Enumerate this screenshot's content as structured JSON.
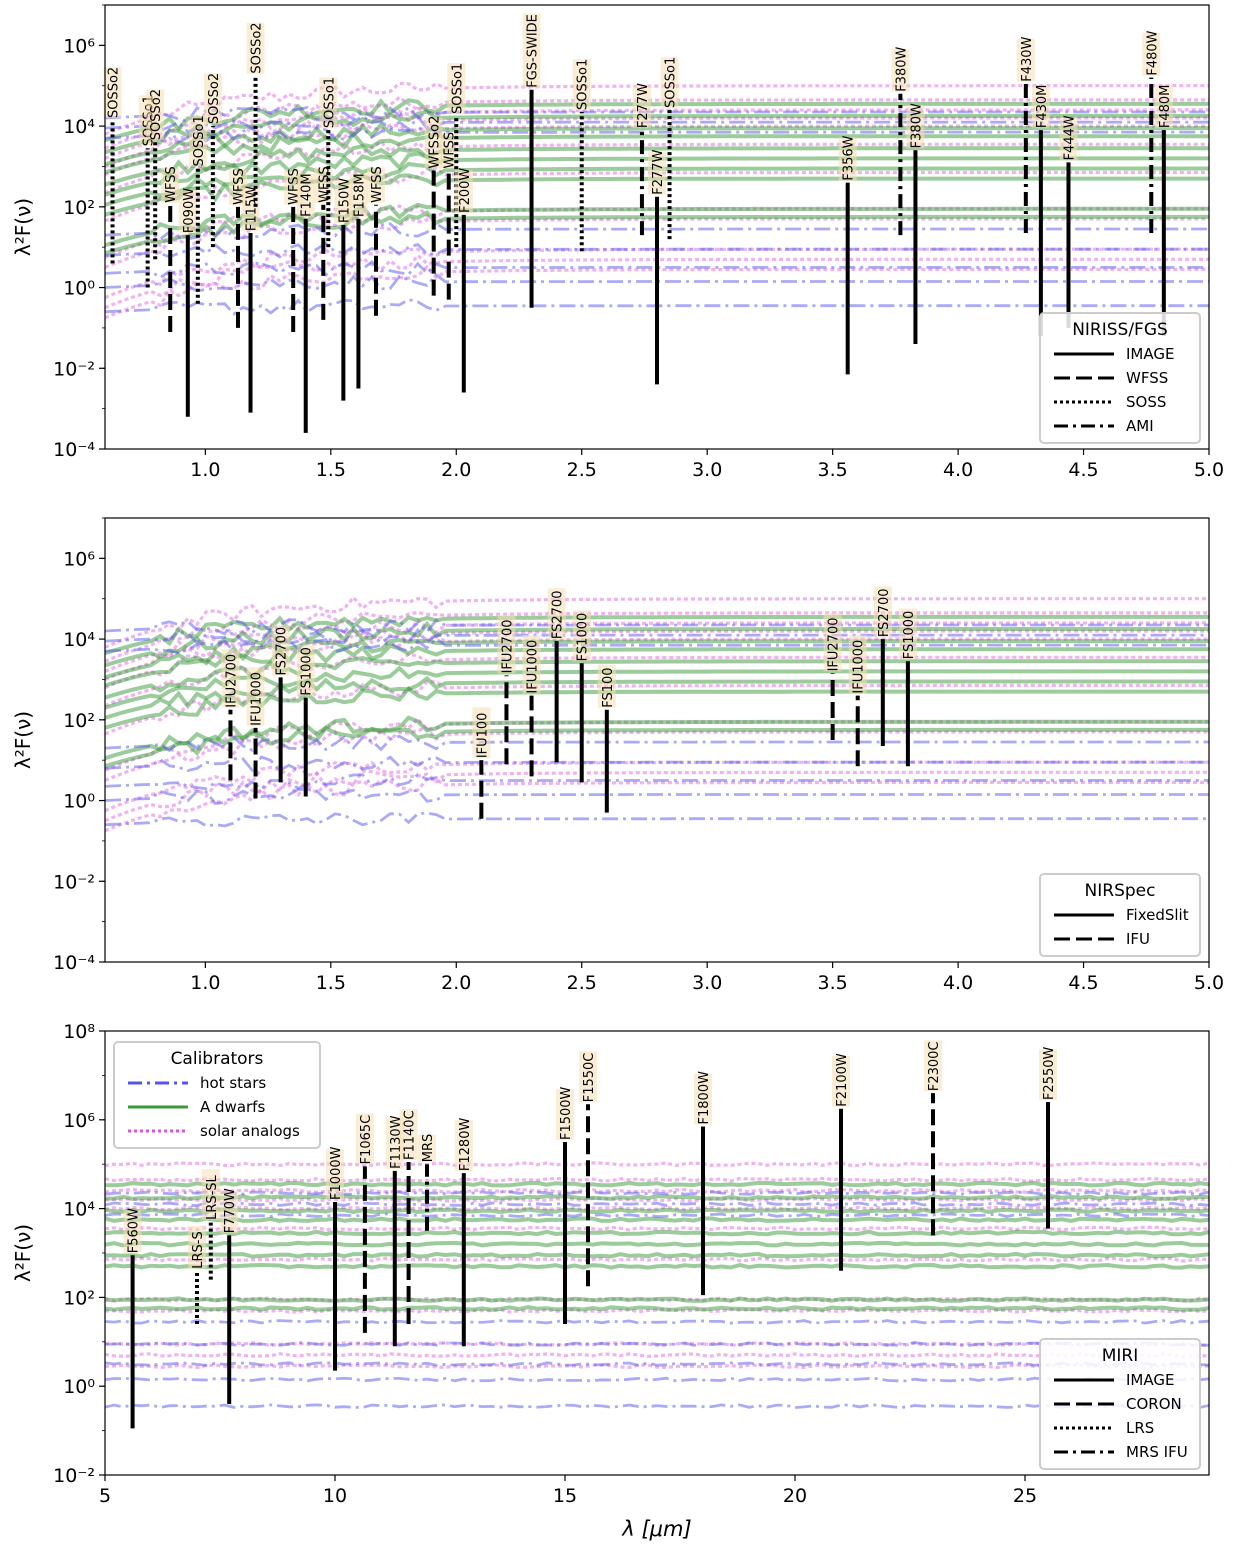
{
  "figure": {
    "xlabel": "λ [μm]"
  },
  "colors": {
    "hot_stars": "#5555ee",
    "a_dwarfs": "#3a9a3a",
    "solar_analogs": "#dd55dd",
    "marker": "#000000",
    "label_box": "#f5deb3"
  },
  "chart_data": [
    {
      "type": "line",
      "panel": "NIRISS/FGS",
      "ylabel": "λ²F(ν)",
      "xlabel": "",
      "xlim": [
        0.6,
        5.0
      ],
      "ylim_log10": [
        -4,
        7
      ],
      "y_scale": "log",
      "xticks": [
        1.0,
        1.5,
        2.0,
        2.5,
        3.0,
        3.5,
        4.0,
        4.5,
        5.0
      ],
      "xtick_labels": [
        "1.0",
        "1.5",
        "2.0",
        "2.5",
        "3.0",
        "3.5",
        "4.0",
        "4.5",
        "5.0"
      ],
      "yticks_log10": [
        -4,
        -2,
        0,
        2,
        4,
        6
      ],
      "ytick_labels": [
        "10⁻⁴",
        "10⁻²",
        "10⁰",
        "10²",
        "10⁴",
        "10⁶"
      ],
      "legend": {
        "title": "NIRISS/FGS",
        "placement": "lower right",
        "entries": [
          {
            "label": "IMAGE",
            "style": "solid"
          },
          {
            "label": "WFSS",
            "style": "dashed"
          },
          {
            "label": "SOSS",
            "style": "dotted"
          },
          {
            "label": "AMI",
            "style": "dashdot"
          }
        ]
      },
      "markers": [
        {
          "x": 0.63,
          "y_low_log10": 0.6,
          "y_high_log10": 4.15,
          "label": "SOSSo2",
          "style": "dotted"
        },
        {
          "x": 0.77,
          "y_low_log10": 0.0,
          "y_high_log10": 3.45,
          "label": "SOSSo1",
          "style": "dotted"
        },
        {
          "x": 0.8,
          "y_low_log10": 0.7,
          "y_high_log10": 3.6,
          "label": "SOSSo2",
          "style": "dotted"
        },
        {
          "x": 0.86,
          "y_low_log10": -1.1,
          "y_high_log10": 2.05,
          "label": "WFSS",
          "style": "dashed"
        },
        {
          "x": 0.93,
          "y_low_log10": -3.2,
          "y_high_log10": 1.3,
          "label": "F090W",
          "style": "solid"
        },
        {
          "x": 0.97,
          "y_low_log10": -0.4,
          "y_high_log10": 2.95,
          "label": "SOSSo1",
          "style": "dotted"
        },
        {
          "x": 1.03,
          "y_low_log10": 1.0,
          "y_high_log10": 4.0,
          "label": "SOSSo2",
          "style": "dotted"
        },
        {
          "x": 1.13,
          "y_low_log10": -1.0,
          "y_high_log10": 2.0,
          "label": "WFSS",
          "style": "dashed"
        },
        {
          "x": 1.18,
          "y_low_log10": -3.1,
          "y_high_log10": 1.35,
          "label": "F115W",
          "style": "solid"
        },
        {
          "x": 1.2,
          "y_low_log10": 2.0,
          "y_high_log10": 5.25,
          "label": "SOSSo2",
          "style": "dotted"
        },
        {
          "x": 1.35,
          "y_low_log10": -1.1,
          "y_high_log10": 2.0,
          "label": "WFSS",
          "style": "dashed"
        },
        {
          "x": 1.4,
          "y_low_log10": -3.6,
          "y_high_log10": 1.7,
          "label": "F140M",
          "style": "solid"
        },
        {
          "x": 1.47,
          "y_low_log10": -0.8,
          "y_high_log10": 2.05,
          "label": "WFSS",
          "style": "dashed"
        },
        {
          "x": 1.49,
          "y_low_log10": 1.0,
          "y_high_log10": 3.9,
          "label": "SOSSo1",
          "style": "dotted"
        },
        {
          "x": 1.55,
          "y_low_log10": -2.8,
          "y_high_log10": 1.55,
          "label": "F150W",
          "style": "solid"
        },
        {
          "x": 1.61,
          "y_low_log10": -2.5,
          "y_high_log10": 1.7,
          "label": "F158M",
          "style": "solid"
        },
        {
          "x": 1.68,
          "y_low_log10": -0.7,
          "y_high_log10": 2.05,
          "label": "WFSS",
          "style": "dashed"
        },
        {
          "x": 1.91,
          "y_low_log10": -0.2,
          "y_high_log10": 2.9,
          "label": "WFSSo2",
          "style": "dashed"
        },
        {
          "x": 1.97,
          "y_low_log10": -0.3,
          "y_high_log10": 2.9,
          "label": "WFSS",
          "style": "dashed"
        },
        {
          "x": 2.0,
          "y_low_log10": 1.0,
          "y_high_log10": 4.25,
          "label": "SOSSo1",
          "style": "dotted"
        },
        {
          "x": 2.03,
          "y_low_log10": -2.6,
          "y_high_log10": 1.8,
          "label": "F200W",
          "style": "solid"
        },
        {
          "x": 2.3,
          "y_low_log10": -0.5,
          "y_high_log10": 4.9,
          "label": "FGS-SWIDE",
          "style": "solid"
        },
        {
          "x": 2.5,
          "y_low_log10": 0.9,
          "y_high_log10": 4.35,
          "label": "SOSSo1",
          "style": "dotted"
        },
        {
          "x": 2.74,
          "y_low_log10": 1.3,
          "y_high_log10": 3.9,
          "label": "F277W",
          "style": "dashdot"
        },
        {
          "x": 2.8,
          "y_low_log10": -2.4,
          "y_high_log10": 2.25,
          "label": "F277W",
          "style": "solid"
        },
        {
          "x": 2.85,
          "y_low_log10": 1.2,
          "y_high_log10": 4.4,
          "label": "SOSSo1",
          "style": "dotted"
        },
        {
          "x": 3.56,
          "y_low_log10": -2.15,
          "y_high_log10": 2.6,
          "label": "F356W",
          "style": "solid"
        },
        {
          "x": 3.77,
          "y_low_log10": 1.3,
          "y_high_log10": 4.8,
          "label": "F380W",
          "style": "dashdot"
        },
        {
          "x": 3.83,
          "y_low_log10": -1.4,
          "y_high_log10": 3.4,
          "label": "F380W",
          "style": "solid"
        },
        {
          "x": 4.27,
          "y_low_log10": 1.35,
          "y_high_log10": 5.05,
          "label": "F430W",
          "style": "dashdot"
        },
        {
          "x": 4.33,
          "y_low_log10": -1.2,
          "y_high_log10": 3.9,
          "label": "F430M",
          "style": "solid"
        },
        {
          "x": 4.44,
          "y_low_log10": -1.0,
          "y_high_log10": 3.1,
          "label": "F444W",
          "style": "solid"
        },
        {
          "x": 4.77,
          "y_low_log10": 1.35,
          "y_high_log10": 5.2,
          "label": "F480W",
          "style": "dashdot"
        },
        {
          "x": 4.82,
          "y_low_log10": -1.2,
          "y_high_log10": 3.9,
          "label": "F480M",
          "style": "solid"
        }
      ]
    },
    {
      "type": "line",
      "panel": "NIRSpec",
      "ylabel": "λ²F(ν)",
      "xlabel": "",
      "xlim": [
        0.6,
        5.0
      ],
      "ylim_log10": [
        -4,
        7
      ],
      "y_scale": "log",
      "xticks": [
        1.0,
        1.5,
        2.0,
        2.5,
        3.0,
        3.5,
        4.0,
        4.5,
        5.0
      ],
      "xtick_labels": [
        "1.0",
        "1.5",
        "2.0",
        "2.5",
        "3.0",
        "3.5",
        "4.0",
        "4.5",
        "5.0"
      ],
      "yticks_log10": [
        -4,
        -2,
        0,
        2,
        4,
        6
      ],
      "ytick_labels": [
        "10⁻⁴",
        "10⁻²",
        "10⁰",
        "10²",
        "10⁴",
        "10⁶"
      ],
      "legend": {
        "title": "NIRSpec",
        "placement": "lower right",
        "entries": [
          {
            "label": "FixedSlit",
            "style": "solid"
          },
          {
            "label": "IFU",
            "style": "dashed"
          }
        ]
      },
      "markers": [
        {
          "x": 1.1,
          "y_low_log10": 0.5,
          "y_high_log10": 2.25,
          "label": "IFU2700",
          "style": "dashed"
        },
        {
          "x": 1.2,
          "y_low_log10": 0.05,
          "y_high_log10": 1.8,
          "label": "IFU1000",
          "style": "dashed"
        },
        {
          "x": 1.3,
          "y_low_log10": 0.45,
          "y_high_log10": 3.05,
          "label": "FS2700",
          "style": "solid"
        },
        {
          "x": 1.4,
          "y_low_log10": 0.1,
          "y_high_log10": 2.55,
          "label": "FS1000",
          "style": "solid"
        },
        {
          "x": 2.1,
          "y_low_log10": -0.45,
          "y_high_log10": 1.0,
          "label": "IFU100",
          "style": "dashed"
        },
        {
          "x": 2.2,
          "y_low_log10": 0.9,
          "y_high_log10": 3.1,
          "label": "IFU2700",
          "style": "dashed"
        },
        {
          "x": 2.3,
          "y_low_log10": 0.6,
          "y_high_log10": 2.6,
          "label": "IFU1000",
          "style": "dashed"
        },
        {
          "x": 2.4,
          "y_low_log10": 0.95,
          "y_high_log10": 3.95,
          "label": "FS2700",
          "style": "solid"
        },
        {
          "x": 2.5,
          "y_low_log10": 0.45,
          "y_high_log10": 3.4,
          "label": "FS1000",
          "style": "solid"
        },
        {
          "x": 2.6,
          "y_low_log10": -0.3,
          "y_high_log10": 2.25,
          "label": "FS100",
          "style": "solid"
        },
        {
          "x": 3.5,
          "y_low_log10": 1.5,
          "y_high_log10": 3.15,
          "label": "IFU2700",
          "style": "dashed"
        },
        {
          "x": 3.6,
          "y_low_log10": 0.85,
          "y_high_log10": 2.6,
          "label": "IFU1000",
          "style": "dashed"
        },
        {
          "x": 3.7,
          "y_low_log10": 1.35,
          "y_high_log10": 4.0,
          "label": "FS2700",
          "style": "solid"
        },
        {
          "x": 3.8,
          "y_low_log10": 0.85,
          "y_high_log10": 3.45,
          "label": "FS1000",
          "style": "solid"
        }
      ]
    },
    {
      "type": "line",
      "panel": "MIRI",
      "ylabel": "λ²F(ν)",
      "xlabel": "λ [μm]",
      "xlim": [
        5.0,
        29.0
      ],
      "ylim_log10": [
        -2,
        8
      ],
      "y_scale": "log",
      "xticks": [
        5,
        10,
        15,
        20,
        25
      ],
      "xtick_labels": [
        "5",
        "10",
        "15",
        "20",
        "25"
      ],
      "yticks_log10": [
        -2,
        0,
        2,
        4,
        6,
        8
      ],
      "ytick_labels": [
        "10⁻²",
        "10⁰",
        "10²",
        "10⁴",
        "10⁶",
        "10⁸"
      ],
      "legend": {
        "title": "MIRI",
        "placement": "lower right",
        "entries": [
          {
            "label": "IMAGE",
            "style": "solid"
          },
          {
            "label": "CORON",
            "style": "dashed"
          },
          {
            "label": "LRS",
            "style": "dotted"
          },
          {
            "label": "MRS IFU",
            "style": "dashdot"
          }
        ]
      },
      "calibrator_legend": {
        "title": "Calibrators",
        "placement": "upper left",
        "entries": [
          {
            "label": "hot stars",
            "color": "#5555ee",
            "style": "dashdot"
          },
          {
            "label": "A dwarfs",
            "color": "#3a9a3a",
            "style": "solid"
          },
          {
            "label": "solar analogs",
            "color": "#dd55dd",
            "style": "dotted"
          }
        ]
      },
      "markers": [
        {
          "x": 5.6,
          "y_low_log10": -0.95,
          "y_high_log10": 2.95,
          "label": "F560W",
          "style": "solid"
        },
        {
          "x": 7.0,
          "y_low_log10": 1.4,
          "y_high_log10": 2.6,
          "label": "LRS-S",
          "style": "dotted"
        },
        {
          "x": 7.3,
          "y_low_log10": 2.4,
          "y_high_log10": 3.7,
          "label": "LRS-SL",
          "style": "dotted"
        },
        {
          "x": 7.7,
          "y_low_log10": -0.4,
          "y_high_log10": 3.4,
          "label": "F770W",
          "style": "solid"
        },
        {
          "x": 10.0,
          "y_low_log10": 0.35,
          "y_high_log10": 4.15,
          "label": "F1000W",
          "style": "solid"
        },
        {
          "x": 10.65,
          "y_low_log10": 1.2,
          "y_high_log10": 4.95,
          "label": "F1065C",
          "style": "dashed"
        },
        {
          "x": 11.3,
          "y_low_log10": 0.9,
          "y_high_log10": 4.85,
          "label": "F1130W",
          "style": "solid"
        },
        {
          "x": 11.6,
          "y_low_log10": 1.4,
          "y_high_log10": 5.05,
          "label": "F1140C",
          "style": "dashed"
        },
        {
          "x": 12.0,
          "y_low_log10": 3.5,
          "y_high_log10": 5.0,
          "label": "MRS",
          "style": "dashdot"
        },
        {
          "x": 12.8,
          "y_low_log10": 0.9,
          "y_high_log10": 4.8,
          "label": "F1280W",
          "style": "solid"
        },
        {
          "x": 15.0,
          "y_low_log10": 1.4,
          "y_high_log10": 5.5,
          "label": "F1500W",
          "style": "solid"
        },
        {
          "x": 15.5,
          "y_low_log10": 2.25,
          "y_high_log10": 6.35,
          "label": "F1550C",
          "style": "dashed"
        },
        {
          "x": 18.0,
          "y_low_log10": 2.05,
          "y_high_log10": 5.85,
          "label": "F1800W",
          "style": "solid"
        },
        {
          "x": 21.0,
          "y_low_log10": 2.6,
          "y_high_log10": 6.25,
          "label": "F2100W",
          "style": "solid"
        },
        {
          "x": 23.0,
          "y_low_log10": 3.4,
          "y_high_log10": 6.6,
          "label": "F2300C",
          "style": "dashed"
        },
        {
          "x": 25.5,
          "y_low_log10": 3.55,
          "y_high_log10": 6.4,
          "label": "F2550W",
          "style": "solid"
        }
      ]
    }
  ],
  "calibrator_spectra": {
    "hot_stars_log10": [
      4.35,
      4.1,
      3.85,
      1.45,
      0.95,
      0.5,
      0.15,
      -0.45
    ],
    "a_dwarfs_log10": [
      4.55,
      4.25,
      3.95,
      3.75,
      3.45,
      3.2,
      2.95,
      2.7,
      1.95,
      1.75
    ],
    "solar_analogs_log10": [
      5.0,
      4.65,
      4.4,
      4.2,
      4.0,
      3.55,
      2.85,
      1.95,
      1.7,
      0.95,
      0.7,
      0.45
    ]
  }
}
